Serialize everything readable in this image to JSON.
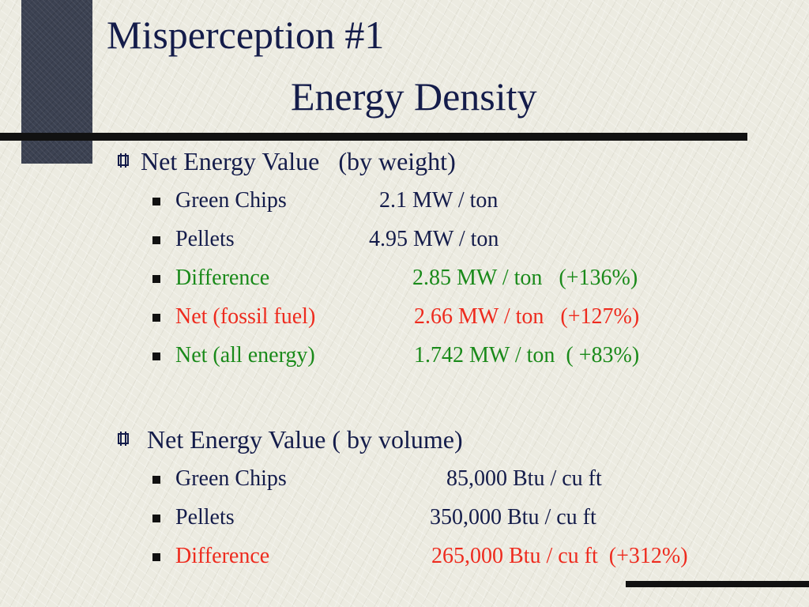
{
  "slide": {
    "title_line1": "Misperception #1",
    "title_line2": "Energy Density",
    "colors": {
      "navy": "#141c4a",
      "green": "#1a8a1a",
      "red": "#ee2b1e",
      "accent_block": "#3c4252"
    },
    "sections": [
      {
        "bullet_icon": "hash-square-bullet-icon",
        "heading": "Net Energy Value   (by weight)",
        "items": [
          {
            "label": "Green Chips",
            "value": "2.1 MW / ton",
            "color": "navy"
          },
          {
            "label": "Pellets",
            "value": "4.95 MW / ton",
            "color": "navy"
          },
          {
            "label": "Difference",
            "value": "2.85 MW / ton   (+136%)",
            "color": "green"
          },
          {
            "label": "Net (fossil fuel)",
            "value": "2.66 MW / ton   (+127%)",
            "color": "red"
          },
          {
            "label": "Net (all energy)",
            "value": "1.742 MW / ton  ( +83%)",
            "color": "green"
          }
        ]
      },
      {
        "bullet_icon": "hash-square-bullet-icon",
        "heading": " Net Energy Value ( by volume)",
        "items": [
          {
            "label": "Green Chips",
            "value": "85,000 Btu / cu ft",
            "color": "navy"
          },
          {
            "label": "Pellets",
            "value": "350,000 Btu / cu ft",
            "color": "navy"
          },
          {
            "label": "Difference",
            "value": "265,000 Btu / cu ft  (+312%)",
            "color": "red"
          }
        ]
      }
    ]
  }
}
